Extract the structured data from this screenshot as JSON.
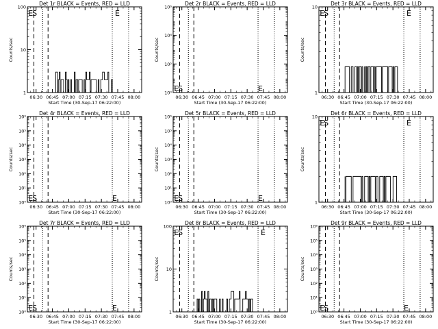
{
  "xlabel": "Start Time (30-Sep-17 06:22:00)",
  "ylabel": "Counts/sec",
  "time_ticks": [
    "06:30",
    "06:45",
    "07:00",
    "07:15",
    "07:30",
    "07:45",
    "08:00"
  ],
  "colors": {
    "background": "#ffffff",
    "axes": "#000000",
    "events": "#000000",
    "lld": "#ff0000"
  },
  "chart_data": [
    {
      "type": "line",
      "title": "Det 1r BLACK = Events, RED = LLD",
      "scale": "log",
      "xlim": [
        "06:22:00",
        "08:07:00"
      ],
      "ylim": [
        1,
        100
      ],
      "y_tick_labels": [
        "1",
        "10",
        "100"
      ],
      "markers": [
        {
          "text": "E",
          "x": "06:22:45",
          "pos": "top"
        },
        {
          "text": "S",
          "x": "06:26:30",
          "pos": "top"
        },
        {
          "text": "E",
          "x": "07:42:30",
          "pos": "top"
        }
      ],
      "dashed_lines": [
        "06:28:00",
        "06:41:00"
      ],
      "dotted_lines": [
        "06:36:00",
        "07:40:00",
        "07:55:00"
      ],
      "series": [
        {
          "x_start": "06:48:00",
          "x_end": "07:40:00",
          "low": 1,
          "high": 3,
          "typical": 2
        }
      ]
    },
    {
      "type": "line",
      "title": "Det 2r BLACK = Events, RED = LLD",
      "scale": "log",
      "xlim": [
        "06:22:00",
        "08:07:00"
      ],
      "ylim": [
        1,
        1000000
      ],
      "y_tick_labels": [
        "10⁰",
        "10²",
        "10⁴",
        "10⁶"
      ],
      "markers": [
        {
          "text": "E",
          "x": "06:22:45",
          "pos": "bottom"
        },
        {
          "text": "S",
          "x": "06:26:30",
          "pos": "bottom"
        },
        {
          "text": "E",
          "x": "07:40:00",
          "pos": "bottom"
        }
      ],
      "dashed_lines": [
        "06:28:00",
        "06:41:00"
      ],
      "dotted_lines": [
        "06:36:00",
        "07:40:00",
        "07:55:00"
      ],
      "series": []
    },
    {
      "type": "line",
      "title": "Det 3r BLACK = Events, RED = LLD",
      "scale": "log",
      "xlim": [
        "06:22:00",
        "08:07:00"
      ],
      "ylim": [
        1,
        10
      ],
      "y_tick_labels": [
        "1",
        "10"
      ],
      "markers": [
        {
          "text": "E",
          "x": "06:22:45",
          "pos": "top"
        },
        {
          "text": "S",
          "x": "06:26:30",
          "pos": "top"
        },
        {
          "text": "E",
          "x": "07:42:30",
          "pos": "top"
        }
      ],
      "dashed_lines": [
        "06:28:00",
        "06:41:00"
      ],
      "dotted_lines": [
        "06:36:00",
        "07:40:00",
        "07:55:00"
      ],
      "series": [
        {
          "x_start": "06:46:00",
          "x_end": "07:35:00",
          "low": 1,
          "high": 2,
          "typical": 2
        }
      ]
    },
    {
      "type": "line",
      "title": "Det 4r BLACK = Events, RED = LLD",
      "scale": "log",
      "xlim": [
        "06:22:00",
        "08:07:00"
      ],
      "ylim": [
        1,
        1000000
      ],
      "y_tick_labels": [
        "10⁰",
        "10¹",
        "10²",
        "10³",
        "10⁴",
        "10⁵",
        "10⁶"
      ],
      "markers": [
        {
          "text": "E",
          "x": "06:22:45",
          "pos": "bottom"
        },
        {
          "text": "S",
          "x": "06:26:30",
          "pos": "bottom"
        },
        {
          "text": "E",
          "x": "07:40:00",
          "pos": "bottom"
        }
      ],
      "dashed_lines": [
        "06:28:00",
        "06:41:00"
      ],
      "dotted_lines": [
        "06:36:00",
        "07:40:00",
        "07:55:00"
      ],
      "series": []
    },
    {
      "type": "line",
      "title": "Det 5r BLACK = Events, RED = LLD",
      "scale": "log",
      "xlim": [
        "06:22:00",
        "08:07:00"
      ],
      "ylim": [
        1,
        1000000
      ],
      "y_tick_labels": [
        "10⁰",
        "10¹",
        "10²",
        "10³",
        "10⁴",
        "10⁵",
        "10⁶"
      ],
      "markers": [
        {
          "text": "E",
          "x": "06:22:45",
          "pos": "bottom"
        },
        {
          "text": "S",
          "x": "06:26:30",
          "pos": "bottom"
        },
        {
          "text": "E",
          "x": "07:40:00",
          "pos": "bottom"
        }
      ],
      "dashed_lines": [
        "06:28:00",
        "06:41:00"
      ],
      "dotted_lines": [
        "06:36:00",
        "07:40:00",
        "07:55:00"
      ],
      "series": []
    },
    {
      "type": "line",
      "title": "Det 6r BLACK = Events, RED = LLD",
      "scale": "log",
      "xlim": [
        "06:22:00",
        "08:07:00"
      ],
      "ylim": [
        1,
        10
      ],
      "y_tick_labels": [
        "1",
        "10"
      ],
      "markers": [
        {
          "text": "E",
          "x": "06:22:45",
          "pos": "top"
        },
        {
          "text": "S",
          "x": "06:26:30",
          "pos": "top"
        },
        {
          "text": "E",
          "x": "07:42:30",
          "pos": "top"
        }
      ],
      "dashed_lines": [
        "06:28:00",
        "06:41:00"
      ],
      "dotted_lines": [
        "06:36:00",
        "07:40:00",
        "07:55:00"
      ],
      "series": [
        {
          "x_start": "06:46:00",
          "x_end": "07:35:00",
          "low": 1,
          "high": 2,
          "typical": 2
        }
      ]
    },
    {
      "type": "line",
      "title": "Det 7r BLACK = Events, RED = LLD",
      "scale": "log",
      "xlim": [
        "06:22:00",
        "08:07:00"
      ],
      "ylim": [
        1,
        1000000
      ],
      "y_tick_labels": [
        "10⁰",
        "10¹",
        "10²",
        "10³",
        "10⁴",
        "10⁵",
        "10⁶"
      ],
      "markers": [
        {
          "text": "E",
          "x": "06:22:45",
          "pos": "bottom"
        },
        {
          "text": "S",
          "x": "06:26:30",
          "pos": "bottom"
        },
        {
          "text": "E",
          "x": "07:40:00",
          "pos": "bottom"
        }
      ],
      "dashed_lines": [
        "06:28:00",
        "06:41:00"
      ],
      "dotted_lines": [
        "06:36:00",
        "07:40:00",
        "07:55:00"
      ],
      "series": []
    },
    {
      "type": "line",
      "title": "Det 8r BLACK = Events, RED = LLD",
      "scale": "log",
      "xlim": [
        "06:22:00",
        "08:07:00"
      ],
      "ylim": [
        1,
        100
      ],
      "y_tick_labels": [
        "1",
        "10",
        "100"
      ],
      "markers": [
        {
          "text": "E",
          "x": "06:22:45",
          "pos": "top"
        },
        {
          "text": "S",
          "x": "06:26:30",
          "pos": "top"
        },
        {
          "text": "E",
          "x": "07:42:30",
          "pos": "top"
        }
      ],
      "dashed_lines": [
        "06:28:00",
        "06:41:00"
      ],
      "dotted_lines": [
        "06:36:00",
        "07:40:00",
        "07:55:00"
      ],
      "series": [
        {
          "x_start": "06:44:00",
          "x_end": "07:35:00",
          "low": 1,
          "high": 3,
          "typical": 2
        }
      ]
    },
    {
      "type": "line",
      "title": "Det 9r BLACK = Events, RED = LLD",
      "scale": "log",
      "xlim": [
        "06:22:00",
        "08:07:00"
      ],
      "ylim": [
        1,
        1000000
      ],
      "y_tick_labels": [
        "10⁰",
        "10¹",
        "10²",
        "10³",
        "10⁴",
        "10⁵",
        "10⁶"
      ],
      "markers": [
        {
          "text": "E",
          "x": "06:22:45",
          "pos": "bottom"
        },
        {
          "text": "S",
          "x": "06:26:30",
          "pos": "bottom"
        },
        {
          "text": "E",
          "x": "07:40:00",
          "pos": "bottom"
        }
      ],
      "dashed_lines": [
        "06:28:00",
        "06:41:00"
      ],
      "dotted_lines": [
        "06:36:00",
        "07:40:00",
        "07:55:00"
      ],
      "series": []
    }
  ]
}
